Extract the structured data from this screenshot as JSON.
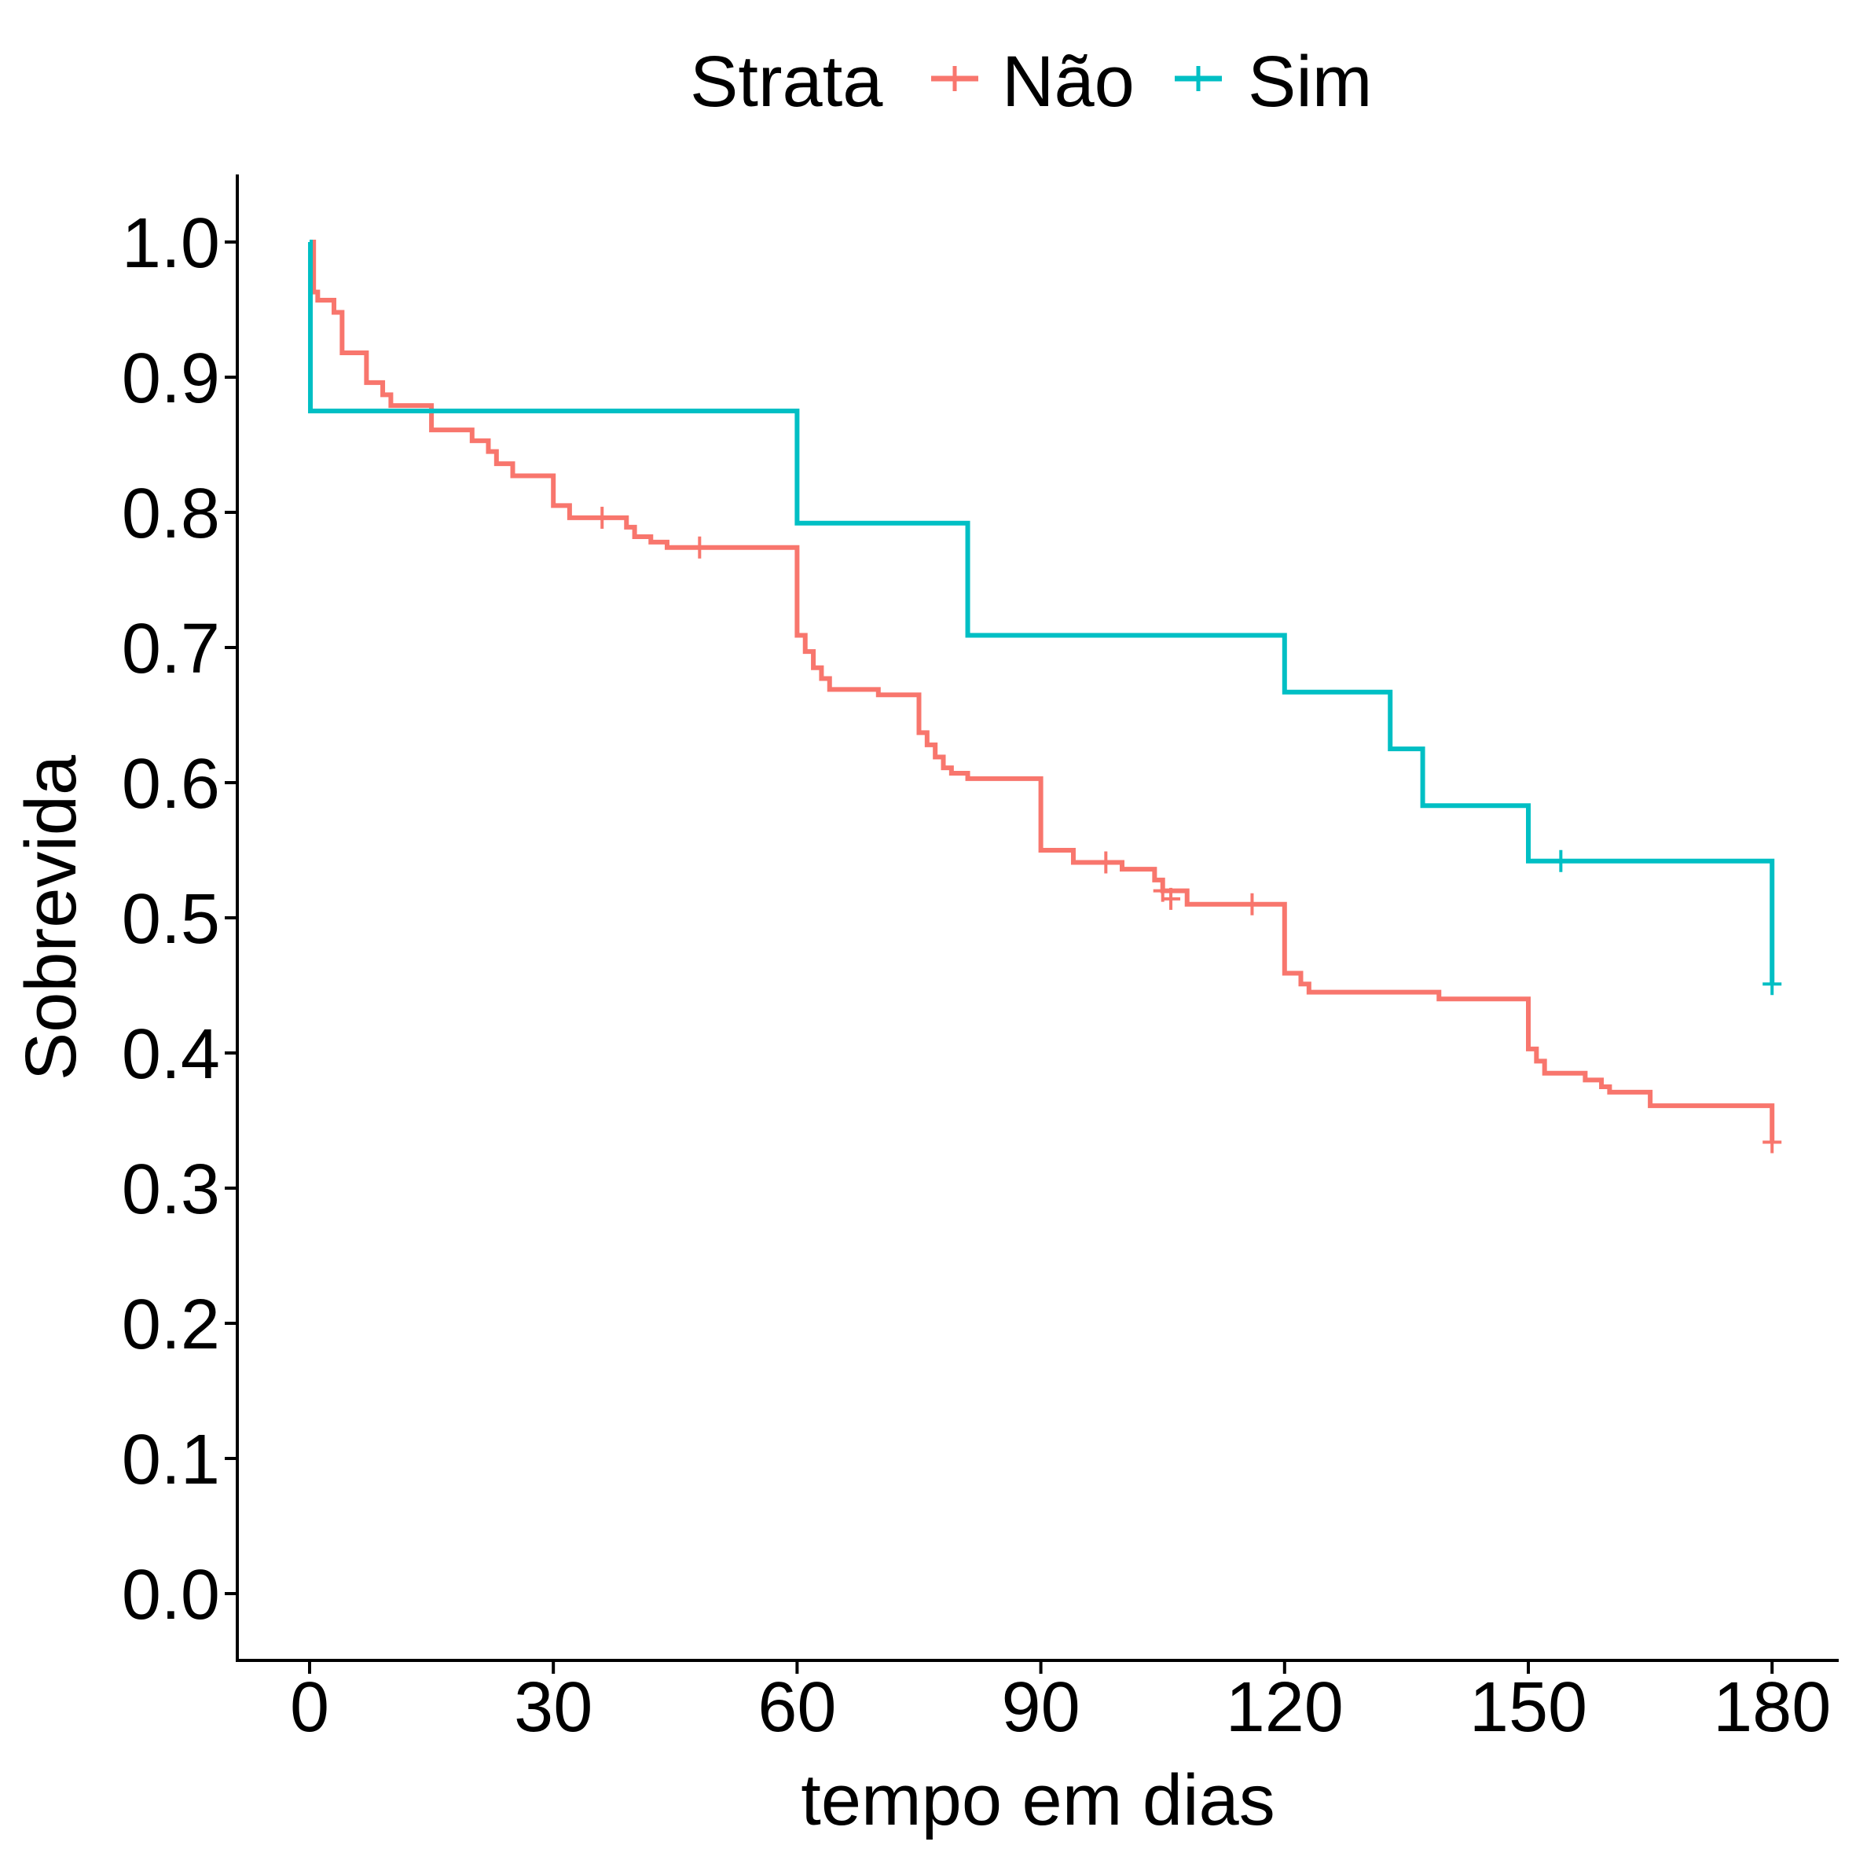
{
  "legend": {
    "title": "Strata",
    "items": [
      {
        "label": "Não",
        "color": "#F8766D"
      },
      {
        "label": "Sim",
        "color": "#00BFC4"
      }
    ]
  },
  "chart_data": {
    "type": "line",
    "step": true,
    "title": "",
    "xlabel": "tempo em dias",
    "ylabel": "Sobrevida",
    "xlim": [
      -15,
      188
    ],
    "ylim": [
      -0.05,
      1.05
    ],
    "x_ticks": [
      0,
      30,
      60,
      90,
      120,
      150,
      180
    ],
    "x_tick_labels": [
      "0",
      "30",
      "60",
      "90",
      "120",
      "150",
      "180"
    ],
    "y_ticks": [
      0.0,
      0.1,
      0.2,
      0.3,
      0.4,
      0.5,
      0.6,
      0.7,
      0.8,
      0.9,
      1.0
    ],
    "y_tick_labels": [
      "0.0",
      "0.1",
      "0.2",
      "0.3",
      "0.4",
      "0.5",
      "0.6",
      "0.7",
      "0.8",
      "0.9",
      "1.0"
    ],
    "grid": false,
    "legend_position": "top",
    "series": [
      {
        "name": "Não",
        "color": "#F8766D",
        "steps": [
          [
            0,
            1.0
          ],
          [
            0.5,
            0.963
          ],
          [
            1,
            0.957
          ],
          [
            3,
            0.948
          ],
          [
            4,
            0.918
          ],
          [
            7,
            0.896
          ],
          [
            9,
            0.887
          ],
          [
            10,
            0.879
          ],
          [
            15,
            0.861
          ],
          [
            20,
            0.853
          ],
          [
            22,
            0.845
          ],
          [
            23,
            0.836
          ],
          [
            25,
            0.827
          ],
          [
            30,
            0.805
          ],
          [
            32,
            0.796
          ],
          [
            39,
            0.789
          ],
          [
            40,
            0.782
          ],
          [
            42,
            0.778
          ],
          [
            44,
            0.774
          ],
          [
            60,
            0.709
          ],
          [
            61,
            0.697
          ],
          [
            62,
            0.685
          ],
          [
            63,
            0.677
          ],
          [
            64,
            0.669
          ],
          [
            70,
            0.665
          ],
          [
            75,
            0.637
          ],
          [
            76,
            0.628
          ],
          [
            77,
            0.619
          ],
          [
            78,
            0.611
          ],
          [
            79,
            0.607
          ],
          [
            81,
            0.603
          ],
          [
            90,
            0.55
          ],
          [
            94,
            0.541
          ],
          [
            100,
            0.536
          ],
          [
            104,
            0.528
          ],
          [
            105,
            0.52
          ],
          [
            108,
            0.51
          ],
          [
            120,
            0.459
          ],
          [
            122,
            0.451
          ],
          [
            123,
            0.445
          ],
          [
            139,
            0.44
          ],
          [
            150,
            0.403
          ],
          [
            151,
            0.394
          ],
          [
            152,
            0.385
          ],
          [
            157,
            0.38
          ],
          [
            159,
            0.375
          ],
          [
            160,
            0.371
          ],
          [
            165,
            0.361
          ],
          [
            180,
            0.334
          ]
        ],
        "censored": [
          [
            36,
            0.796
          ],
          [
            48,
            0.774
          ],
          [
            98,
            0.541
          ],
          [
            105,
            0.52
          ],
          [
            106,
            0.514
          ],
          [
            116,
            0.51
          ],
          [
            180,
            0.334
          ]
        ]
      },
      {
        "name": "Sim",
        "color": "#00BFC4",
        "steps": [
          [
            0,
            1.0
          ],
          [
            0.1,
            0.875
          ],
          [
            60,
            0.792
          ],
          [
            81,
            0.709
          ],
          [
            120,
            0.667
          ],
          [
            133,
            0.625
          ],
          [
            137,
            0.583
          ],
          [
            150,
            0.542
          ],
          [
            180,
            0.451
          ]
        ],
        "censored": [
          [
            154,
            0.542
          ],
          [
            180,
            0.451
          ]
        ]
      }
    ]
  }
}
